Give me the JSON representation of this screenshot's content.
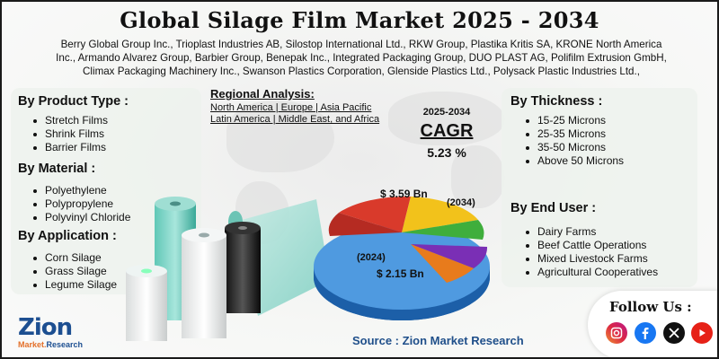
{
  "title": "Global Silage Film Market 2025 - 2034",
  "companies": [
    "Berry Global Group Inc., Trioplast Industries AB, Silostop International Ltd., RKW Group, Plastika Kritis SA, KRONE North America",
    "Inc., Armando Alvarez Group, Barbier Group, Benepak Inc., Integrated Packaging Group, DUO PLAST AG, Polifilm Extrusion GmbH,",
    "Climax Packaging Machinery Inc., Swanson Plastics Corporation, Glenside Plastics Ltd., Polysack Plastic Industries Ltd.,"
  ],
  "left_panel": {
    "product_type": {
      "title": "By Product Type  :",
      "items": [
        "Stretch Films",
        "Shrink Films",
        "Barrier Films"
      ]
    },
    "material": {
      "title": "By Material :",
      "items": [
        "Polyethylene",
        "Polypropylene",
        "Polyvinyl Chloride"
      ]
    },
    "application": {
      "title": "By Application :",
      "items": [
        "Corn Silage",
        "Grass Silage",
        "Legume Silage"
      ]
    }
  },
  "regional": {
    "title": "Regional Analysis:",
    "line1": "North America | Europe | Asia Pacific",
    "line2": "Latin America | Middle East, and Africa"
  },
  "cagr": {
    "period": "2025-2034",
    "label": "CAGR",
    "value": "5.23 %"
  },
  "pie": {
    "value_2034": "$ 3.59 Bn",
    "year_2034": "(2034)",
    "year_2024": "(2024)",
    "value_2024": "$ 2.15 Bn",
    "colors": [
      "#d93a2b",
      "#f2c21b",
      "#3fae3c",
      "#7a2fb5",
      "#e87b1c",
      "#2e7fd6"
    ]
  },
  "right_panel": {
    "thickness": {
      "title": "By Thickness :",
      "items": [
        "15-25 Microns",
        "25-35 Microns",
        "35-50 Microns",
        "Above 50 Microns"
      ]
    },
    "end_user": {
      "title": "By End User :",
      "items": [
        "Dairy Farms",
        "Beef Cattle Operations",
        "Mixed Livestock Farms",
        "Agricultural Cooperatives"
      ]
    }
  },
  "source": "Source : Zion Market Research",
  "logo": {
    "main": "Zion",
    "sub_market": "Market.",
    "sub_research": "Research"
  },
  "follow": {
    "label": "Follow Us :",
    "icons": [
      "instagram-icon",
      "facebook-icon",
      "x-icon",
      "youtube-icon"
    ]
  }
}
